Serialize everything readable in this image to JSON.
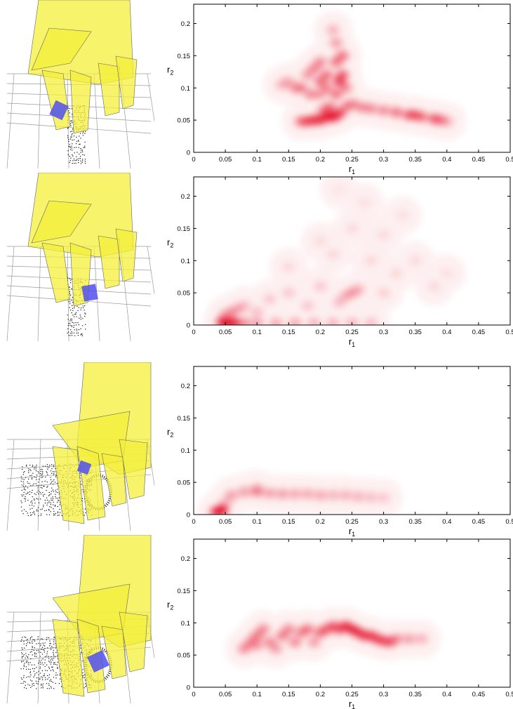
{
  "colors": {
    "density": "#e3001b",
    "hand": "#f4ef3a",
    "contact": "#4f4ff0",
    "grid": "#bbbbbb"
  },
  "axis_labels": {
    "x": "r",
    "x_sub": "1",
    "y": "r",
    "y_sub": "2"
  },
  "panels": [
    {
      "image_desc": "hand-grasping-cylinder-view-1",
      "contact_side": "left"
    },
    {
      "image_desc": "hand-grasping-cylinder-view-2",
      "contact_side": "right"
    },
    {
      "image_desc": "hand-grasping-mug-handle-view-1",
      "contact_side": "top"
    },
    {
      "image_desc": "hand-grasping-mug-handle-view-2",
      "contact_side": "bottom"
    }
  ],
  "chart_data": [
    {
      "type": "heatmap",
      "xlim": [
        0,
        0.5
      ],
      "ylim": [
        0,
        0.23
      ],
      "xticks": [
        "0",
        "0.05",
        "0.1",
        "0.15",
        "0.2",
        "0.25",
        "0.3",
        "0.35",
        "0.4",
        "0.45",
        "0.5"
      ],
      "yticks": [
        "0",
        "0.05",
        "0.1",
        "0.15",
        "0.2"
      ],
      "xlabel": "r1",
      "ylabel": "r2",
      "points": [
        [
          0.22,
          0.055,
          1.0
        ],
        [
          0.21,
          0.055,
          0.9
        ],
        [
          0.2,
          0.05,
          0.8
        ],
        [
          0.19,
          0.05,
          0.8
        ],
        [
          0.18,
          0.048,
          0.7
        ],
        [
          0.17,
          0.048,
          0.6
        ],
        [
          0.23,
          0.06,
          0.8
        ],
        [
          0.215,
          0.07,
          0.6
        ],
        [
          0.205,
          0.065,
          0.5
        ],
        [
          0.24,
          0.07,
          0.5
        ],
        [
          0.25,
          0.075,
          0.5
        ],
        [
          0.265,
          0.07,
          0.5
        ],
        [
          0.28,
          0.068,
          0.5
        ],
        [
          0.3,
          0.065,
          0.5
        ],
        [
          0.32,
          0.062,
          0.6
        ],
        [
          0.34,
          0.058,
          0.7
        ],
        [
          0.35,
          0.058,
          0.6
        ],
        [
          0.36,
          0.055,
          0.6
        ],
        [
          0.38,
          0.052,
          0.7
        ],
        [
          0.39,
          0.05,
          0.5
        ],
        [
          0.4,
          0.048,
          0.3
        ],
        [
          0.23,
          0.11,
          0.8
        ],
        [
          0.235,
          0.12,
          0.7
        ],
        [
          0.225,
          0.14,
          0.6
        ],
        [
          0.235,
          0.15,
          0.6
        ],
        [
          0.225,
          0.17,
          0.4
        ],
        [
          0.22,
          0.19,
          0.3
        ],
        [
          0.2,
          0.11,
          0.6
        ],
        [
          0.21,
          0.12,
          0.6
        ],
        [
          0.19,
          0.13,
          0.5
        ],
        [
          0.2,
          0.14,
          0.5
        ],
        [
          0.18,
          0.12,
          0.4
        ],
        [
          0.17,
          0.1,
          0.5
        ],
        [
          0.16,
          0.1,
          0.4
        ],
        [
          0.15,
          0.11,
          0.3
        ],
        [
          0.14,
          0.105,
          0.3
        ],
        [
          0.185,
          0.09,
          0.5
        ],
        [
          0.2,
          0.09,
          0.4
        ],
        [
          0.225,
          0.09,
          0.6
        ],
        [
          0.24,
          0.1,
          0.5
        ],
        [
          0.21,
          0.1,
          0.5
        ]
      ]
    },
    {
      "type": "heatmap",
      "xlim": [
        0,
        0.5
      ],
      "ylim": [
        0,
        0.23
      ],
      "xticks": [
        "0",
        "0.05",
        "0.1",
        "0.15",
        "0.2",
        "0.25",
        "0.3",
        "0.35",
        "0.4",
        "0.45",
        "0.5"
      ],
      "yticks": [
        "0",
        "0.05",
        "0.1",
        "0.15",
        "0.2"
      ],
      "xlabel": "r1",
      "ylabel": "r2",
      "points": [
        [
          0.05,
          0.003,
          1.0
        ],
        [
          0.06,
          0.003,
          0.9
        ],
        [
          0.045,
          0.004,
          0.8
        ],
        [
          0.065,
          0.003,
          0.7
        ],
        [
          0.08,
          0.003,
          0.5
        ],
        [
          0.1,
          0.003,
          0.4
        ],
        [
          0.13,
          0.003,
          0.35
        ],
        [
          0.16,
          0.003,
          0.35
        ],
        [
          0.19,
          0.003,
          0.3
        ],
        [
          0.22,
          0.003,
          0.3
        ],
        [
          0.25,
          0.003,
          0.3
        ],
        [
          0.28,
          0.003,
          0.25
        ],
        [
          0.06,
          0.02,
          0.4
        ],
        [
          0.07,
          0.025,
          0.3
        ],
        [
          0.05,
          0.015,
          0.4
        ],
        [
          0.08,
          0.03,
          0.25
        ],
        [
          0.1,
          0.02,
          0.25
        ],
        [
          0.25,
          0.05,
          0.35
        ],
        [
          0.24,
          0.045,
          0.3
        ],
        [
          0.26,
          0.055,
          0.3
        ],
        [
          0.23,
          0.035,
          0.25
        ],
        [
          0.2,
          0.06,
          0.2
        ],
        [
          0.15,
          0.05,
          0.2
        ],
        [
          0.12,
          0.04,
          0.2
        ],
        [
          0.18,
          0.03,
          0.2
        ],
        [
          0.3,
          0.05,
          0.15
        ],
        [
          0.32,
          0.08,
          0.12
        ],
        [
          0.28,
          0.1,
          0.12
        ],
        [
          0.22,
          0.11,
          0.12
        ],
        [
          0.15,
          0.09,
          0.12
        ],
        [
          0.35,
          0.1,
          0.1
        ],
        [
          0.3,
          0.14,
          0.1
        ],
        [
          0.25,
          0.15,
          0.1
        ],
        [
          0.2,
          0.13,
          0.1
        ],
        [
          0.38,
          0.06,
          0.1
        ],
        [
          0.33,
          0.17,
          0.08
        ],
        [
          0.27,
          0.19,
          0.08
        ],
        [
          0.23,
          0.21,
          0.06
        ],
        [
          0.4,
          0.08,
          0.08
        ]
      ]
    },
    {
      "type": "heatmap",
      "xlim": [
        0,
        0.5
      ],
      "ylim": [
        0,
        0.23
      ],
      "xticks": [
        "0",
        "0.05",
        "0.1",
        "0.15",
        "0.2",
        "0.25",
        "0.3",
        "0.35",
        "0.4",
        "0.45",
        "0.5"
      ],
      "yticks": [
        "0",
        "0.05",
        "0.1",
        "0.15",
        "0.2"
      ],
      "xlabel": "r1",
      "ylabel": "r2",
      "points": [
        [
          0.04,
          0.005,
          1.0
        ],
        [
          0.045,
          0.007,
          0.9
        ],
        [
          0.035,
          0.004,
          0.7
        ],
        [
          0.06,
          0.03,
          0.4
        ],
        [
          0.08,
          0.035,
          0.4
        ],
        [
          0.1,
          0.035,
          0.45
        ],
        [
          0.12,
          0.033,
          0.4
        ],
        [
          0.14,
          0.032,
          0.4
        ],
        [
          0.16,
          0.032,
          0.35
        ],
        [
          0.18,
          0.032,
          0.35
        ],
        [
          0.2,
          0.03,
          0.35
        ],
        [
          0.22,
          0.03,
          0.3
        ],
        [
          0.24,
          0.03,
          0.3
        ],
        [
          0.26,
          0.028,
          0.3
        ],
        [
          0.28,
          0.027,
          0.25
        ],
        [
          0.3,
          0.026,
          0.2
        ],
        [
          0.05,
          0.018,
          0.3
        ],
        [
          0.1,
          0.04,
          0.3
        ]
      ]
    },
    {
      "type": "heatmap",
      "xlim": [
        0,
        0.5
      ],
      "ylim": [
        0,
        0.23
      ],
      "xticks": [
        "0",
        "0.05",
        "0.1",
        "0.15",
        "0.2",
        "0.25",
        "0.3",
        "0.35",
        "0.4",
        "0.45",
        "0.5"
      ],
      "yticks": [
        "0",
        "0.05",
        "0.1",
        "0.15",
        "0.2"
      ],
      "xlabel": "r1",
      "ylabel": "r2",
      "points": [
        [
          0.08,
          0.06,
          0.5
        ],
        [
          0.09,
          0.07,
          0.5
        ],
        [
          0.1,
          0.08,
          0.55
        ],
        [
          0.11,
          0.09,
          0.5
        ],
        [
          0.12,
          0.07,
          0.5
        ],
        [
          0.14,
          0.08,
          0.55
        ],
        [
          0.15,
          0.09,
          0.5
        ],
        [
          0.16,
          0.07,
          0.5
        ],
        [
          0.17,
          0.085,
          0.5
        ],
        [
          0.18,
          0.09,
          0.55
        ],
        [
          0.2,
          0.085,
          0.6
        ],
        [
          0.21,
          0.09,
          0.6
        ],
        [
          0.22,
          0.095,
          0.65
        ],
        [
          0.23,
          0.09,
          0.7
        ],
        [
          0.24,
          0.095,
          0.85
        ],
        [
          0.25,
          0.09,
          0.9
        ],
        [
          0.26,
          0.085,
          0.85
        ],
        [
          0.27,
          0.08,
          0.8
        ],
        [
          0.28,
          0.08,
          0.75
        ],
        [
          0.29,
          0.075,
          0.75
        ],
        [
          0.3,
          0.072,
          0.7
        ],
        [
          0.31,
          0.07,
          0.65
        ],
        [
          0.32,
          0.075,
          0.5
        ],
        [
          0.34,
          0.075,
          0.4
        ],
        [
          0.36,
          0.075,
          0.3
        ],
        [
          0.13,
          0.06,
          0.4
        ],
        [
          0.19,
          0.07,
          0.4
        ],
        [
          0.1,
          0.065,
          0.4
        ]
      ]
    }
  ]
}
